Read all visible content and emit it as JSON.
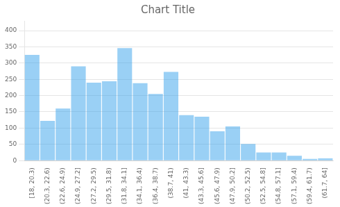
{
  "chart_data": {
    "type": "bar",
    "title": "Chart Title",
    "categories": [
      "[18, 20.3)",
      "(20.3, 22.6)",
      "(22.6, 24.9)",
      "(24.9, 27.2]",
      "(27.2, 29.5)",
      "(29.5, 31.8)",
      "(31.8, 34.1]",
      "(34.1, 36.4)",
      "(36.4, 38.7)",
      "(38.7, 41)",
      "(41, 43.3)",
      "(43.3, 45.6]",
      "(45.6, 47.9)",
      "(47.9, 50.2]",
      "(50.2, 52.5)",
      "(52.5, 54.8]",
      "(54.8, 57.1]",
      "(57.1, 59.4)",
      "(59.4, 61.7)",
      "(61.7, 64]"
    ],
    "values": [
      325,
      122,
      160,
      290,
      240,
      244,
      346,
      238,
      205,
      273,
      140,
      135,
      90,
      105,
      51,
      25,
      25,
      15,
      5,
      7
    ],
    "ylim": [
      0,
      430
    ],
    "yticks": [
      0,
      50,
      100,
      150,
      200,
      250,
      300,
      350,
      400
    ],
    "grid": true
  }
}
